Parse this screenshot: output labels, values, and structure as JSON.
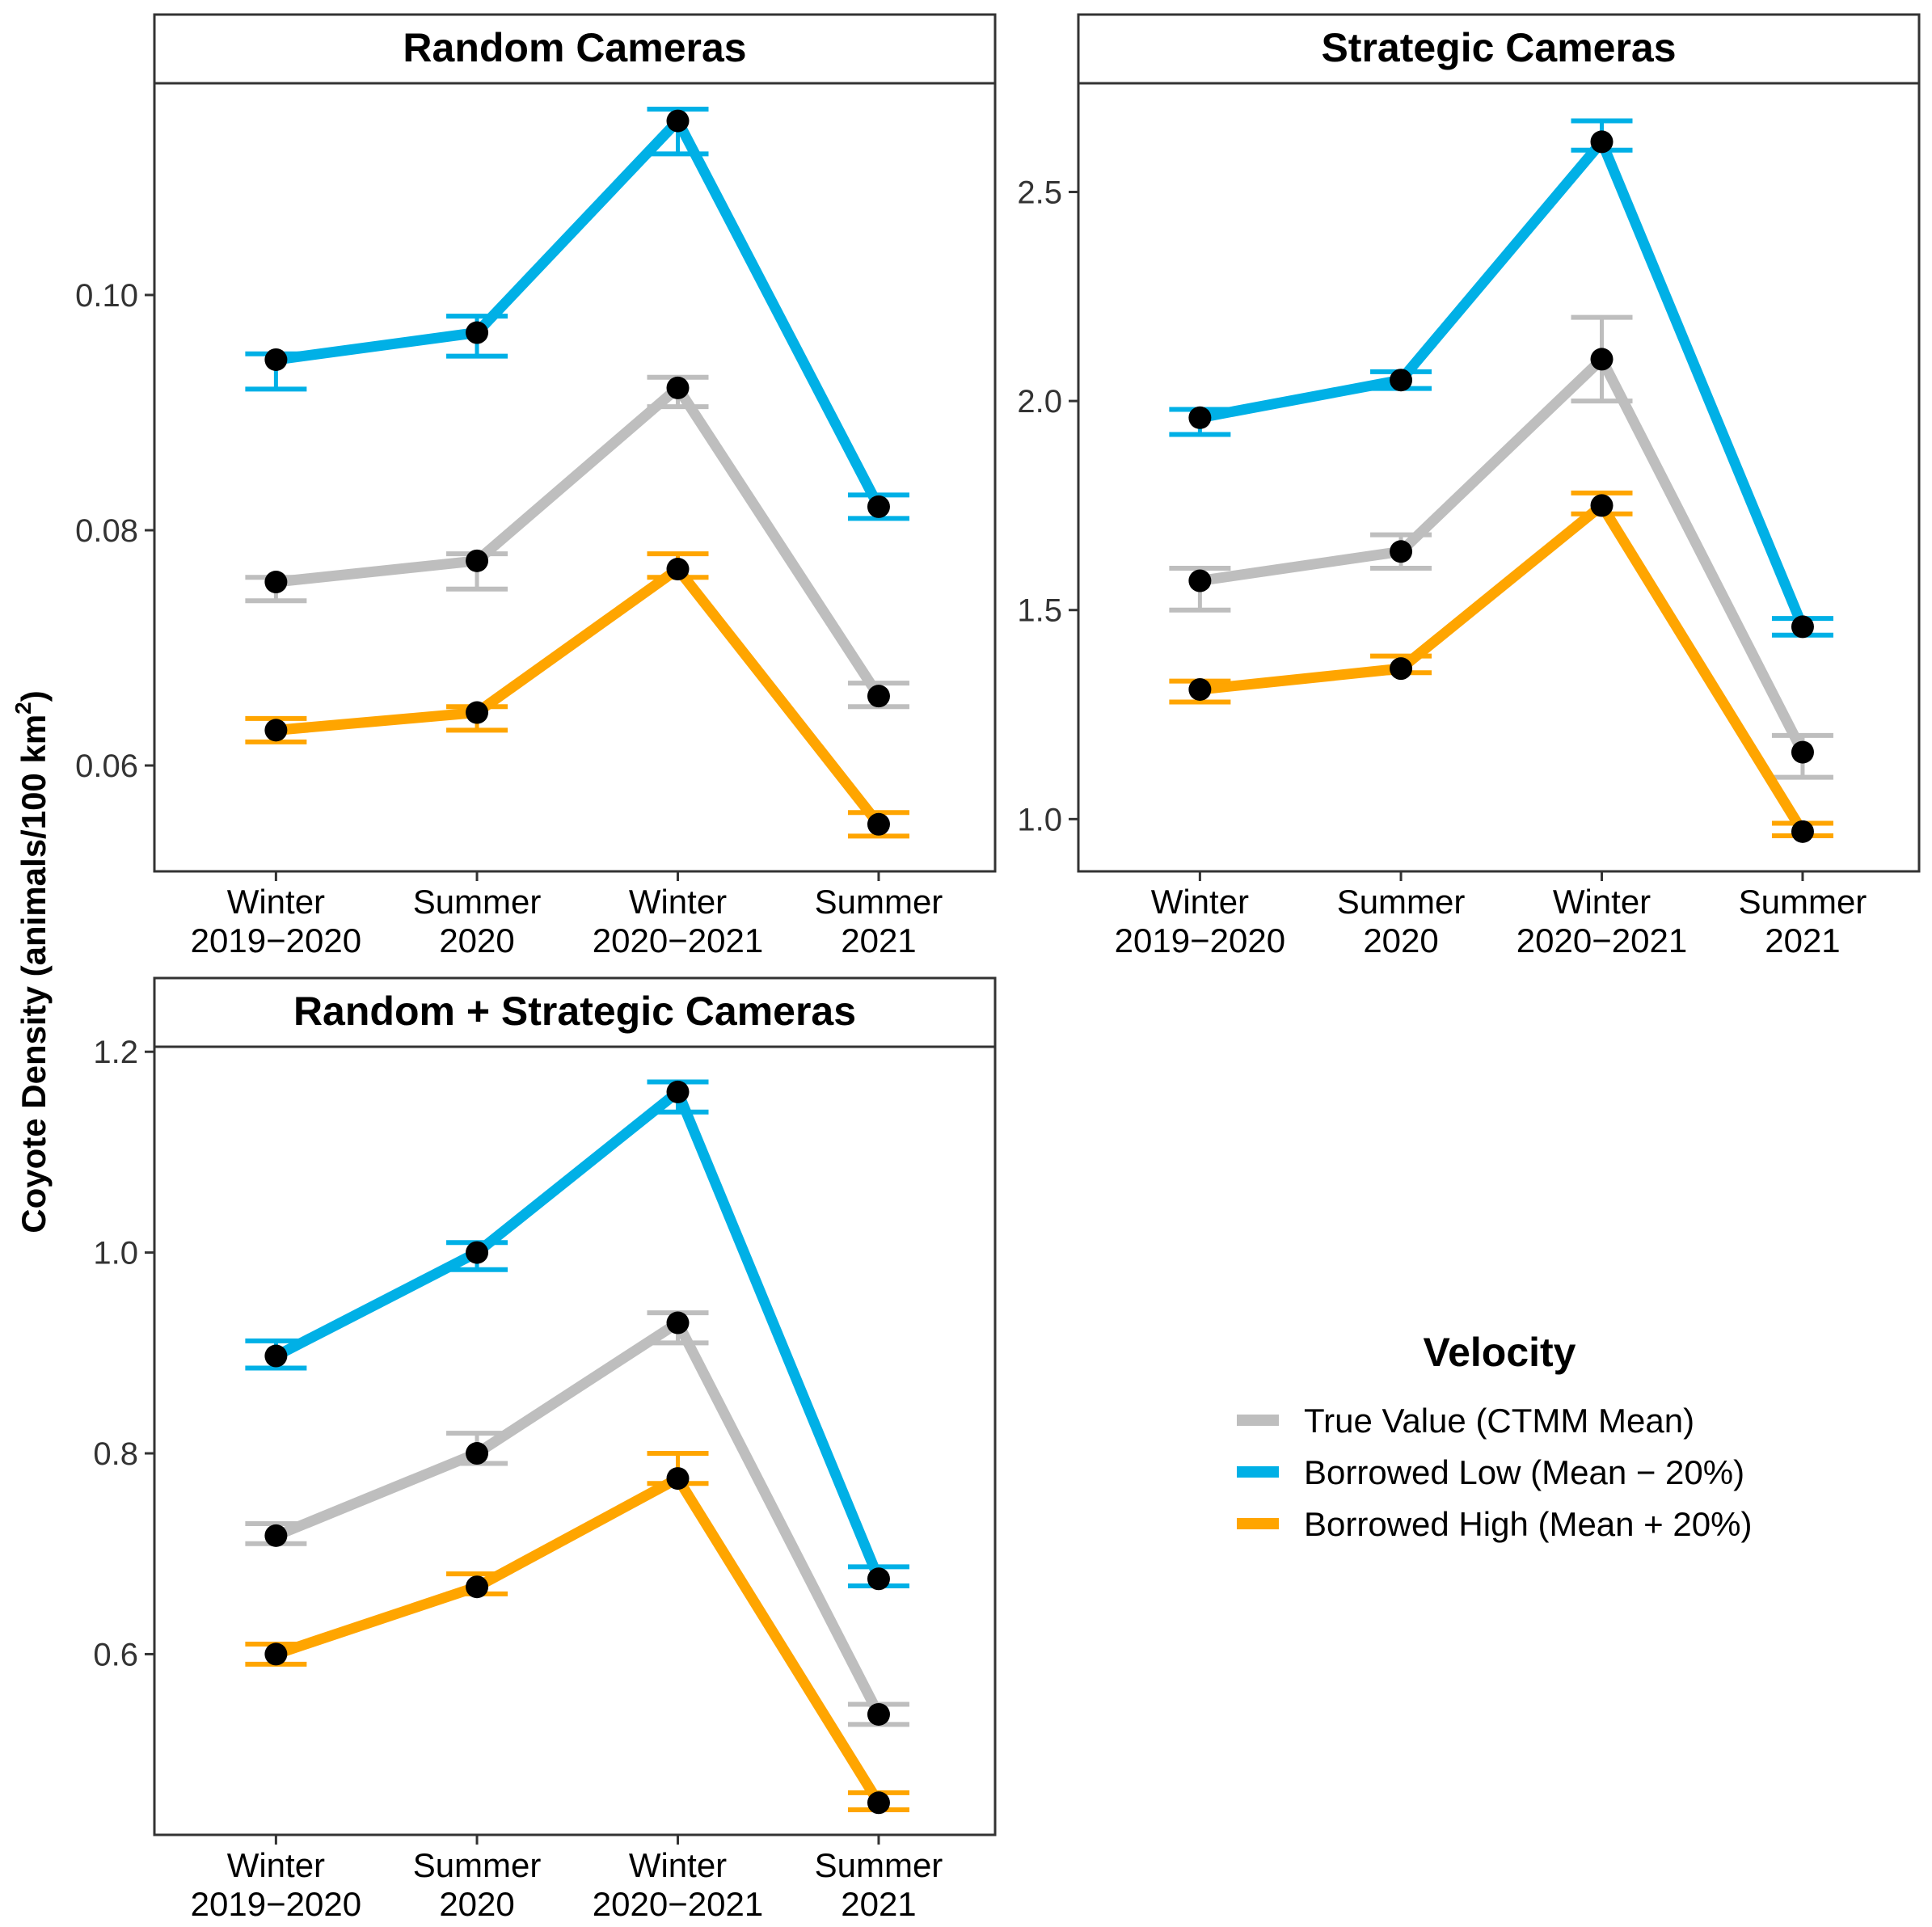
{
  "colors": {
    "true_value": "#bebebe",
    "borrowed_low": "#00b0e6",
    "borrowed_high": "#ffa500",
    "point": "#000000"
  },
  "chart_data": {
    "type": "line",
    "ylabel": "Coyote Density (animals/100 km²)",
    "ylabel_parts": {
      "main": "Coyote Density (animals/100 km",
      "sup": "2",
      "end": ")"
    },
    "categories": [
      [
        "Winter",
        "2019−2020"
      ],
      [
        "Summer",
        "2020"
      ],
      [
        "Winter",
        "2020−2021"
      ],
      [
        "Summer",
        "2021"
      ]
    ],
    "legend": {
      "title": "Velocity",
      "position": "bottom-right",
      "entries": [
        {
          "key": "true_value",
          "label": "True Value (CTMM Mean)"
        },
        {
          "key": "borrowed_low",
          "label": "Borrowed Low (Mean − 20%)"
        },
        {
          "key": "borrowed_high",
          "label": "Borrowed High (Mean + 20%)"
        }
      ]
    },
    "panels": [
      {
        "id": "random",
        "title": "Random Cameras",
        "ylim": [
          0.051,
          0.118
        ],
        "yticks": [
          0.06,
          0.08,
          0.1
        ],
        "ytick_labels": [
          "0.06",
          "0.08",
          "0.10"
        ],
        "series": [
          {
            "key": "true_value",
            "name": "True Value (CTMM Mean)",
            "values": [
              0.0756,
              0.0774,
              0.0921,
              0.0659
            ],
            "lower": [
              0.074,
              0.075,
              0.0905,
              0.065
            ],
            "upper": [
              0.076,
              0.078,
              0.093,
              0.067
            ]
          },
          {
            "key": "borrowed_low",
            "name": "Borrowed Low (Mean − 20%)",
            "values": [
              0.0945,
              0.0968,
              0.1148,
              0.082
            ],
            "lower": [
              0.092,
              0.0948,
              0.112,
              0.081
            ],
            "upper": [
              0.095,
              0.0982,
              0.1158,
              0.083
            ]
          },
          {
            "key": "borrowed_high",
            "name": "Borrowed High (Mean + 20%)",
            "values": [
              0.063,
              0.0645,
              0.0767,
              0.055
            ],
            "lower": [
              0.062,
              0.063,
              0.076,
              0.054
            ],
            "upper": [
              0.064,
              0.065,
              0.078,
              0.056
            ]
          }
        ]
      },
      {
        "id": "strategic",
        "title": "Strategic Cameras",
        "ylim": [
          0.875,
          2.76
        ],
        "yticks": [
          1.0,
          1.5,
          2.0,
          2.5
        ],
        "ytick_labels": [
          "1.0",
          "1.5",
          "2.0",
          "2.5"
        ],
        "series": [
          {
            "key": "true_value",
            "name": "True Value (CTMM Mean)",
            "values": [
              1.57,
              1.64,
              2.1,
              1.16
            ],
            "lower": [
              1.5,
              1.6,
              2.0,
              1.1
            ],
            "upper": [
              1.6,
              1.68,
              2.2,
              1.2
            ]
          },
          {
            "key": "borrowed_low",
            "name": "Borrowed Low (Mean − 20%)",
            "values": [
              1.96,
              2.05,
              2.62,
              1.46
            ],
            "lower": [
              1.92,
              2.03,
              2.6,
              1.44
            ],
            "upper": [
              1.98,
              2.07,
              2.67,
              1.48
            ]
          },
          {
            "key": "borrowed_high",
            "name": "Borrowed High (Mean + 20%)",
            "values": [
              1.31,
              1.36,
              1.75,
              0.97
            ],
            "lower": [
              1.28,
              1.35,
              1.73,
              0.96
            ],
            "upper": [
              1.33,
              1.39,
              1.78,
              0.99
            ]
          }
        ]
      },
      {
        "id": "combined",
        "title": "Random + Strategic Cameras",
        "ylim": [
          0.42,
          1.205
        ],
        "yticks": [
          0.6,
          0.8,
          1.0,
          1.2
        ],
        "ytick_labels": [
          "0.6",
          "0.8",
          "1.0",
          "1.2"
        ],
        "series": [
          {
            "key": "true_value",
            "name": "True Value (CTMM Mean)",
            "values": [
              0.718,
              0.8,
              0.93,
              0.54
            ],
            "lower": [
              0.71,
              0.79,
              0.91,
              0.53
            ],
            "upper": [
              0.73,
              0.82,
              0.94,
              0.55
            ]
          },
          {
            "key": "borrowed_low",
            "name": "Borrowed Low (Mean − 20%)",
            "values": [
              0.897,
              1.0,
              1.16,
              0.675
            ],
            "lower": [
              0.885,
              0.983,
              1.14,
              0.668
            ],
            "upper": [
              0.912,
              1.01,
              1.17,
              0.687
            ]
          },
          {
            "key": "borrowed_high",
            "name": "Borrowed High (Mean + 20%)",
            "values": [
              0.6,
              0.667,
              0.775,
              0.452
            ],
            "lower": [
              0.59,
              0.66,
              0.77,
              0.445
            ],
            "upper": [
              0.61,
              0.68,
              0.8,
              0.462
            ]
          }
        ]
      }
    ]
  }
}
